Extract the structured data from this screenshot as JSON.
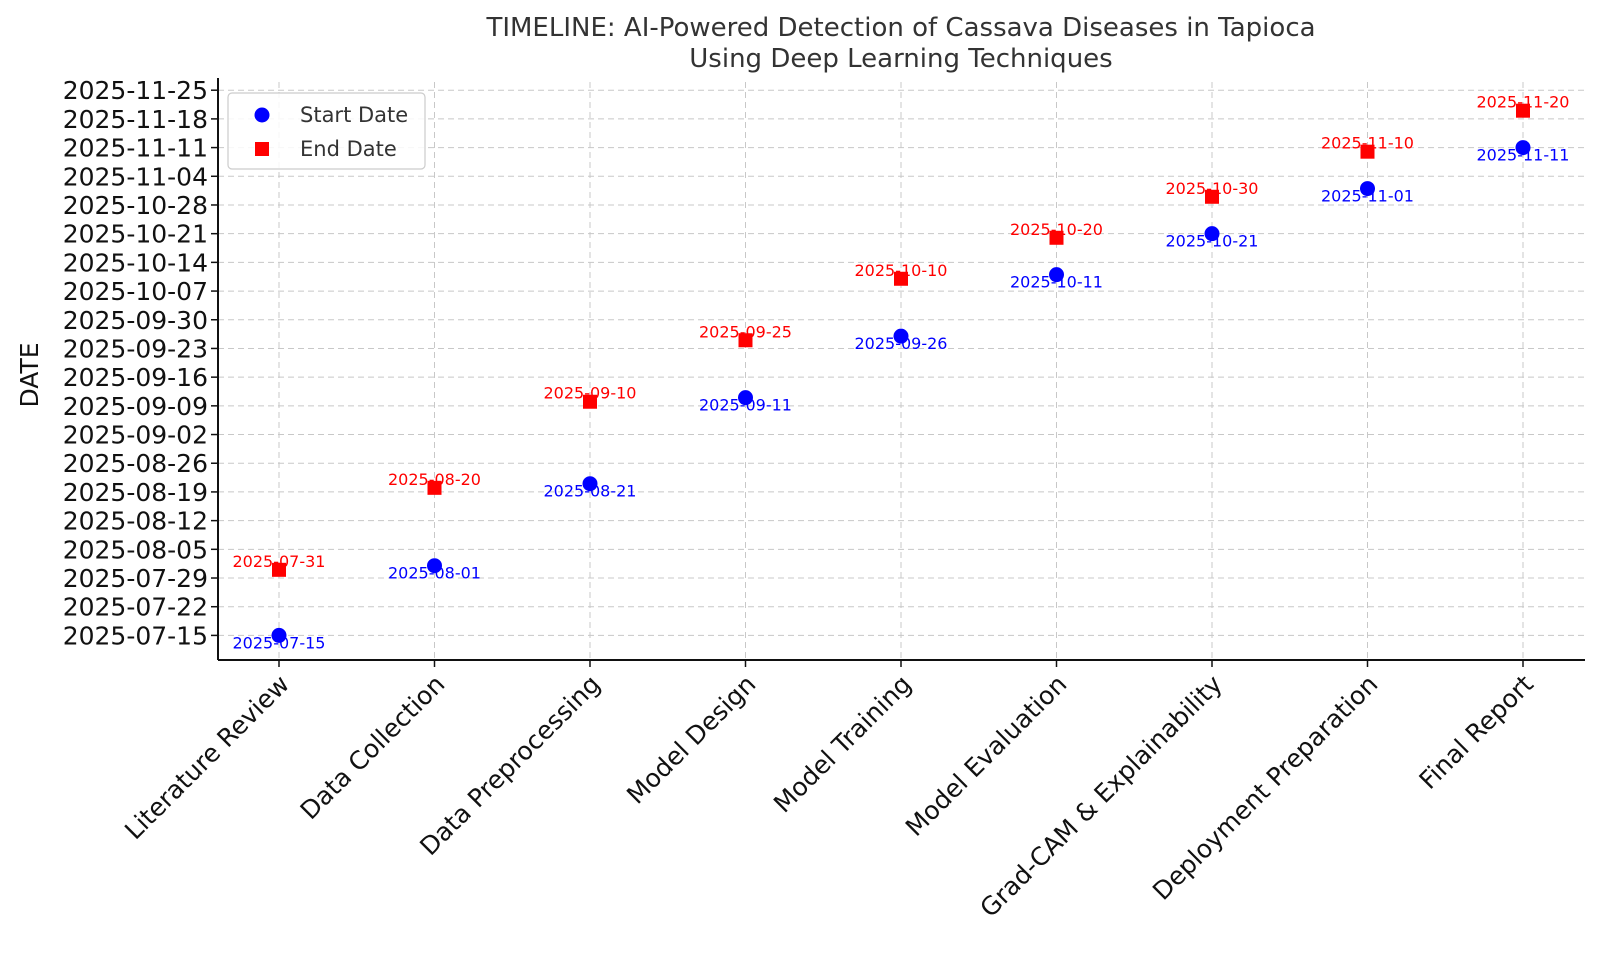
{
  "chart_data": {
    "type": "scatter",
    "title": [
      "TIMELINE: AI-Powered Detection of Cassava Diseases in Tapioca",
      "Using Deep Learning Techniques"
    ],
    "ylabel": "DATE",
    "xlabel": "",
    "categories": [
      "Literature Review",
      "Data Collection",
      "Data Preprocessing",
      "Model Design",
      "Model Training",
      "Model Evaluation",
      "Grad-CAM & Explainability",
      "Deployment Preparation",
      "Final Report"
    ],
    "series": [
      {
        "name": "Start Date",
        "color": "#0000ff",
        "marker": "circle",
        "values": [
          "2025-07-15",
          "2025-08-01",
          "2025-08-21",
          "2025-09-11",
          "2025-09-26",
          "2025-10-11",
          "2025-10-21",
          "2025-11-01",
          "2025-11-11"
        ]
      },
      {
        "name": "End Date",
        "color": "#ff0000",
        "marker": "square",
        "values": [
          "2025-07-31",
          "2025-08-20",
          "2025-09-10",
          "2025-09-25",
          "2025-10-10",
          "2025-10-20",
          "2025-10-30",
          "2025-11-10",
          "2025-11-20"
        ]
      }
    ],
    "yticks": [
      "2025-07-15",
      "2025-07-22",
      "2025-07-29",
      "2025-08-05",
      "2025-08-12",
      "2025-08-19",
      "2025-08-26",
      "2025-09-02",
      "2025-09-09",
      "2025-09-16",
      "2025-09-23",
      "2025-09-30",
      "2025-10-07",
      "2025-10-14",
      "2025-10-21",
      "2025-10-28",
      "2025-11-04",
      "2025-11-11",
      "2025-11-18",
      "2025-11-25"
    ],
    "ylim": [
      "2025-07-09",
      "2025-11-27"
    ],
    "grid": true,
    "legend": "top-left"
  }
}
